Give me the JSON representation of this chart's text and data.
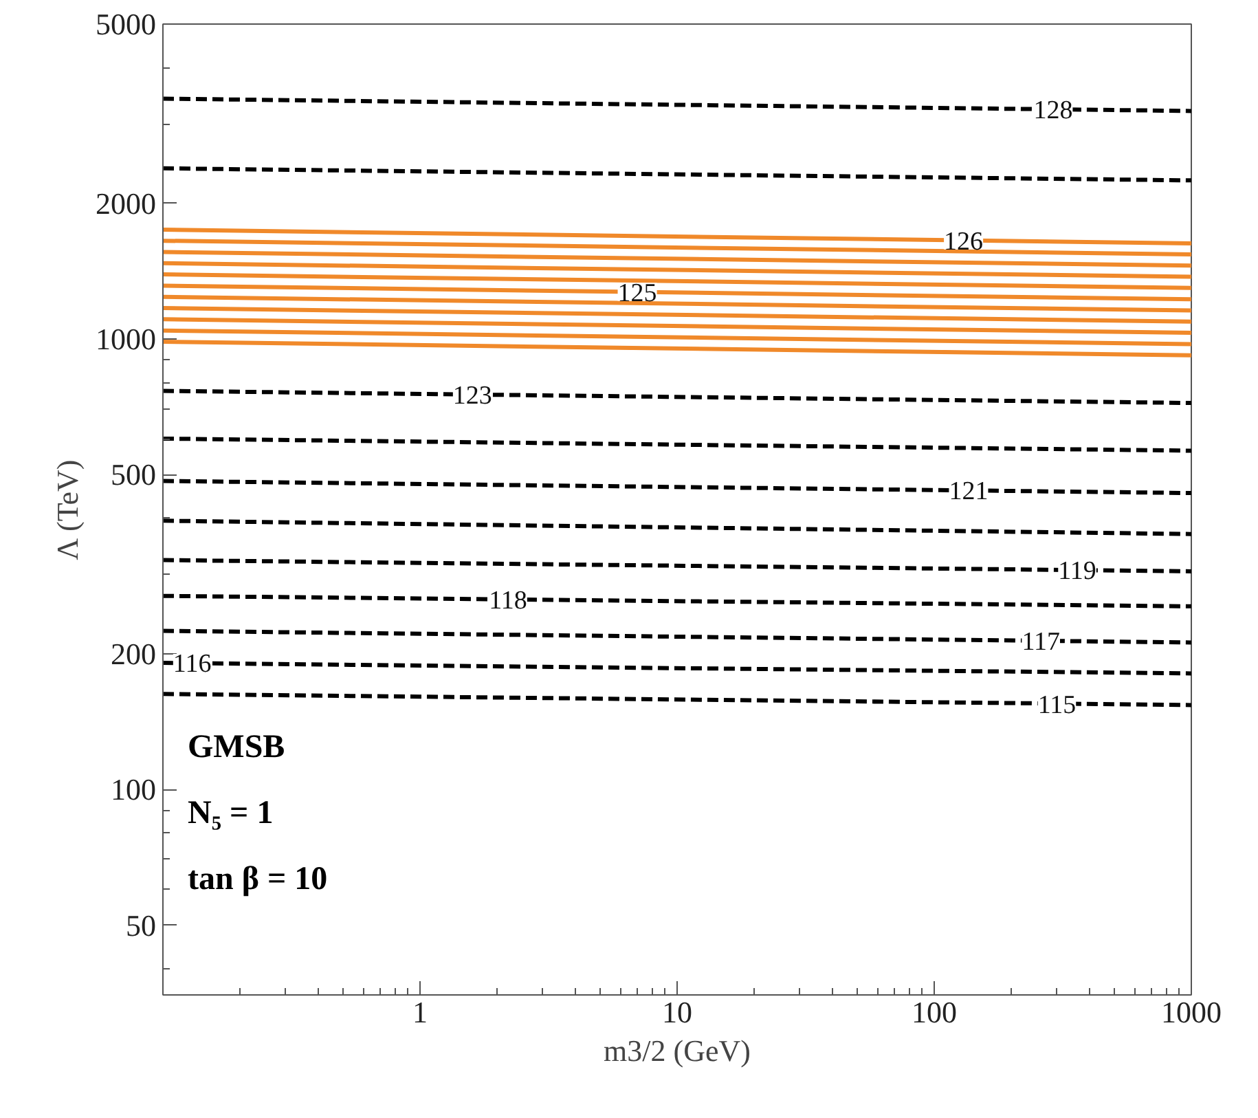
{
  "chart_data": {
    "type": "line",
    "xlabel": "m3/2 (GeV)",
    "ylabel": "Λ (TeV)",
    "log": "xy",
    "grid": false,
    "line_style": "dashed",
    "xlim": [
      0.1,
      1000
    ],
    "xticks": [
      1,
      10,
      100,
      1000
    ],
    "ylim": [
      35,
      5000
    ],
    "yticks": [
      50,
      100,
      200,
      500,
      1000,
      2000,
      5000
    ],
    "x": [
      0.1,
      1000
    ],
    "series": [
      {
        "color": "#000000",
        "values": [
          3415,
          3207
        ]
      },
      {
        "color": "#000000",
        "values": [
          2392,
          2249
        ]
      },
      {
        "color": "#f0892a",
        "line_style": "solid",
        "values": [
          1748,
          1630
        ]
      },
      {
        "color": "#f0892a",
        "line_style": "solid",
        "values": [
          1652,
          1541
        ]
      },
      {
        "color": "#f0892a",
        "line_style": "solid",
        "values": [
          1560,
          1455
        ]
      },
      {
        "color": "#f0892a",
        "line_style": "solid",
        "values": [
          1473,
          1374
        ]
      },
      {
        "color": "#f0892a",
        "line_style": "solid",
        "values": [
          1391,
          1298
        ]
      },
      {
        "color": "#f0892a",
        "line_style": "solid",
        "values": [
          1313,
          1225
        ]
      },
      {
        "color": "#f0892a",
        "line_style": "solid",
        "values": [
          1240,
          1157
        ]
      },
      {
        "color": "#f0892a",
        "line_style": "solid",
        "values": [
          1171,
          1093
        ]
      },
      {
        "color": "#f0892a",
        "line_style": "solid",
        "values": [
          1106,
          1032
        ]
      },
      {
        "color": "#f0892a",
        "line_style": "solid",
        "values": [
          1044,
          974
        ]
      },
      {
        "color": "#f0892a",
        "line_style": "solid",
        "values": [
          986,
          920
        ]
      },
      {
        "color": "#000000",
        "values": [
          767,
          721
        ]
      },
      {
        "color": "#000000",
        "values": [
          601,
          565
        ]
      },
      {
        "color": "#000000",
        "values": [
          484,
          455
        ]
      },
      {
        "color": "#000000",
        "values": [
          395,
          369
        ]
      },
      {
        "color": "#000000",
        "values": [
          323,
          305
        ]
      },
      {
        "color": "#000000",
        "values": [
          269,
          255
        ]
      },
      {
        "color": "#000000",
        "values": [
          225,
          212
        ]
      },
      {
        "color": "#000000",
        "values": [
          191,
          181
        ]
      },
      {
        "color": "#000000",
        "values": [
          163,
          154
        ]
      }
    ],
    "annotations": [
      {
        "text": "128",
        "x": 290,
        "y": 3234
      },
      {
        "text": "126",
        "x": 130,
        "y": 1655
      },
      {
        "text": "125",
        "x": 7.0,
        "y": 1272
      },
      {
        "text": "123",
        "x": 1.6,
        "y": 753
      },
      {
        "text": "121",
        "x": 136,
        "y": 461
      },
      {
        "text": "119",
        "x": 360,
        "y": 307
      },
      {
        "text": "118",
        "x": 2.2,
        "y": 264
      },
      {
        "text": "117",
        "x": 260,
        "y": 214
      },
      {
        "text": "116",
        "x": 0.13,
        "y": 191
      },
      {
        "text": "115",
        "x": 300,
        "y": 155
      },
      "GMSB",
      "N₅ = 1",
      "tan β = 10"
    ]
  }
}
